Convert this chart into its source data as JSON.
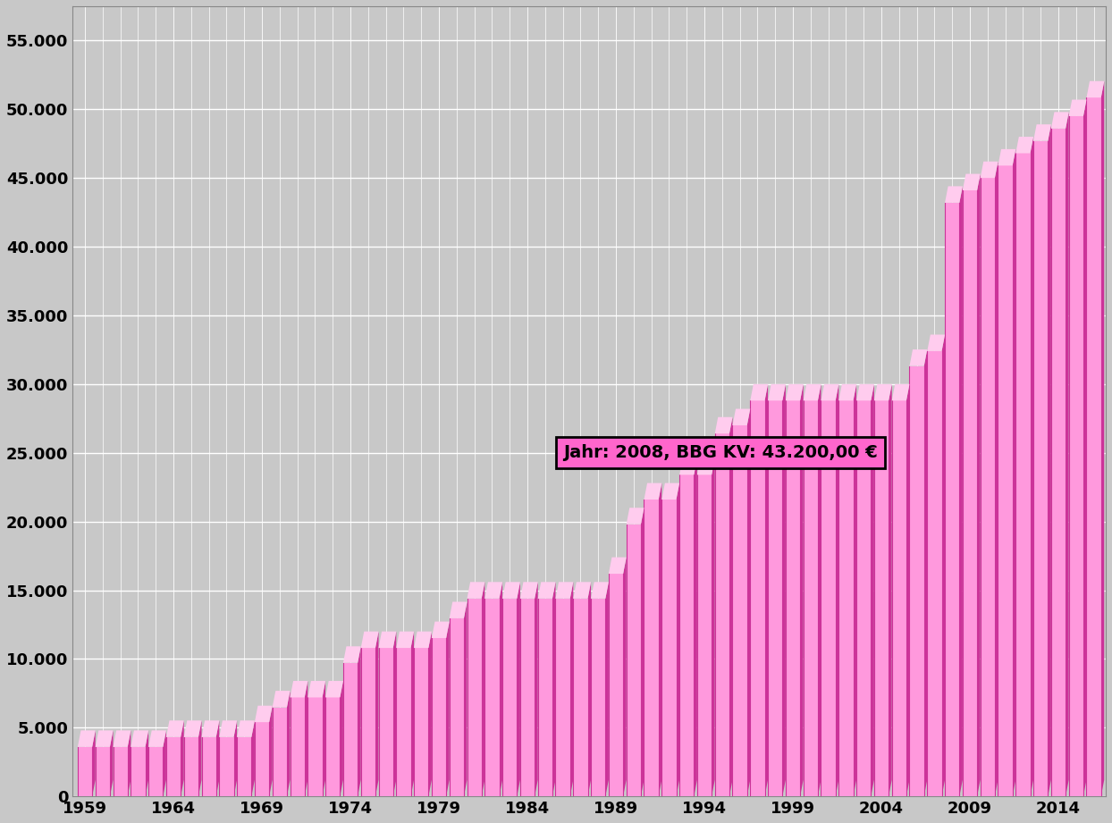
{
  "years": [
    1959,
    1960,
    1961,
    1962,
    1963,
    1964,
    1965,
    1966,
    1967,
    1968,
    1969,
    1970,
    1971,
    1972,
    1973,
    1974,
    1975,
    1976,
    1977,
    1978,
    1979,
    1980,
    1981,
    1982,
    1983,
    1984,
    1985,
    1986,
    1987,
    1988,
    1989,
    1990,
    1991,
    1992,
    1993,
    1994,
    1995,
    1996,
    1997,
    1998,
    1999,
    2000,
    2001,
    2002,
    2003,
    2004,
    2005,
    2006,
    2007,
    2008,
    2009,
    2010,
    2011,
    2012,
    2013,
    2014,
    2015,
    2016
  ],
  "values": [
    3600,
    3600,
    3600,
    3600,
    3600,
    4320,
    4320,
    4320,
    4320,
    4320,
    5400,
    6480,
    7200,
    7200,
    7200,
    9720,
    10800,
    10800,
    10800,
    10800,
    11520,
    12960,
    14400,
    14400,
    14400,
    14400,
    14400,
    14400,
    14400,
    14400,
    16200,
    19800,
    21600,
    21600,
    23400,
    23400,
    26400,
    27000,
    28800,
    28800,
    28800,
    28800,
    28800,
    28800,
    28800,
    28800,
    28800,
    31320,
    32400,
    43200,
    44100,
    45000,
    45900,
    46800,
    47700,
    48600,
    49500,
    50850
  ],
  "bar_front_color": "#ff99dd",
  "bar_right_color": "#cc3399",
  "bar_top_color": "#ffccee",
  "background_color": "#c8c8c8",
  "plot_bg_color": "#c8c8c8",
  "grid_color": "#ffffff",
  "annotation_text": "Jahr: 2008, BBG KV: 43.200,00 €",
  "annotation_bg": "#ff66cc",
  "annotation_border": "#000000",
  "ylim": [
    0,
    57500
  ],
  "yticks": [
    0,
    5000,
    10000,
    15000,
    20000,
    25000,
    30000,
    35000,
    40000,
    45000,
    50000,
    55000
  ],
  "ytick_labels": [
    "0",
    "5.000",
    "10.000",
    "15.000",
    "20.000",
    "25.000",
    "30.000",
    "35.000",
    "40.000",
    "45.000",
    "50.000",
    "55.000"
  ],
  "xtick_years": [
    1959,
    1964,
    1969,
    1974,
    1979,
    1984,
    1989,
    1994,
    1999,
    2004,
    2009,
    2014
  ],
  "figsize": [
    12.44,
    9.21
  ],
  "dpi": 100
}
